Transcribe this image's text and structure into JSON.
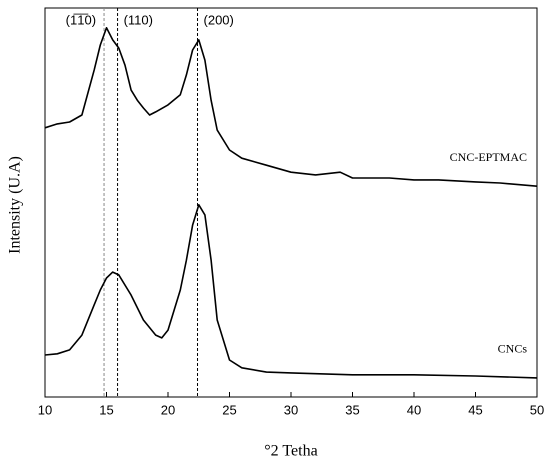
{
  "chart_data": {
    "type": "line",
    "xlabel": "°2 Tetha",
    "ylabel": "Intensity (U.A)",
    "xlim": [
      10,
      50
    ],
    "xticks": [
      10,
      15,
      20,
      25,
      30,
      35,
      40,
      45,
      50
    ],
    "ylim": [
      0,
      100
    ],
    "reference_lines": [
      {
        "x": 14.8,
        "label": "(1̅1̅0)"
      },
      {
        "x": 15.9,
        "label": "(110)"
      },
      {
        "x": 22.4,
        "label": "(200)"
      }
    ],
    "series": [
      {
        "name": "CNC-EPTMAC",
        "color": "#000000",
        "x": [
          10,
          11,
          12,
          13,
          14,
          14.5,
          15,
          15.5,
          16,
          16.5,
          17,
          17.5,
          18,
          18.5,
          19,
          20,
          21,
          21.5,
          22,
          22.5,
          23,
          23.5,
          24,
          25,
          26,
          28,
          30,
          32,
          34,
          35,
          38,
          40,
          42,
          45,
          47,
          50
        ],
        "values": [
          69.2,
          70.2,
          70.7,
          72.5,
          84.1,
          90.5,
          94.9,
          91.8,
          89.7,
          85.3,
          78.9,
          76.3,
          74.3,
          72.5,
          73.3,
          75.1,
          77.7,
          82.8,
          89.2,
          91.8,
          86.6,
          76.3,
          68.6,
          63.5,
          61.4,
          59.6,
          57.8,
          57.1,
          57.8,
          56.3,
          56.3,
          55.8,
          55.8,
          55.3,
          55.0,
          54.2
        ]
      },
      {
        "name": "CNCs",
        "color": "#000000",
        "x": [
          10,
          11,
          12,
          13,
          14,
          14.5,
          15,
          15.5,
          16,
          17,
          18,
          19,
          19.5,
          20,
          21,
          21.5,
          22,
          22.5,
          23,
          23.5,
          24,
          25,
          26,
          28,
          30,
          35,
          40,
          45,
          50
        ],
        "values": [
          10.8,
          11.1,
          12.1,
          15.9,
          23.7,
          27.5,
          30.6,
          32.1,
          31.4,
          26.2,
          19.8,
          15.9,
          15.2,
          17.2,
          27.5,
          35.2,
          44.2,
          49.4,
          46.8,
          35.2,
          19.8,
          9.5,
          7.5,
          6.4,
          6.2,
          5.7,
          5.7,
          5.4,
          4.9
        ]
      }
    ]
  }
}
